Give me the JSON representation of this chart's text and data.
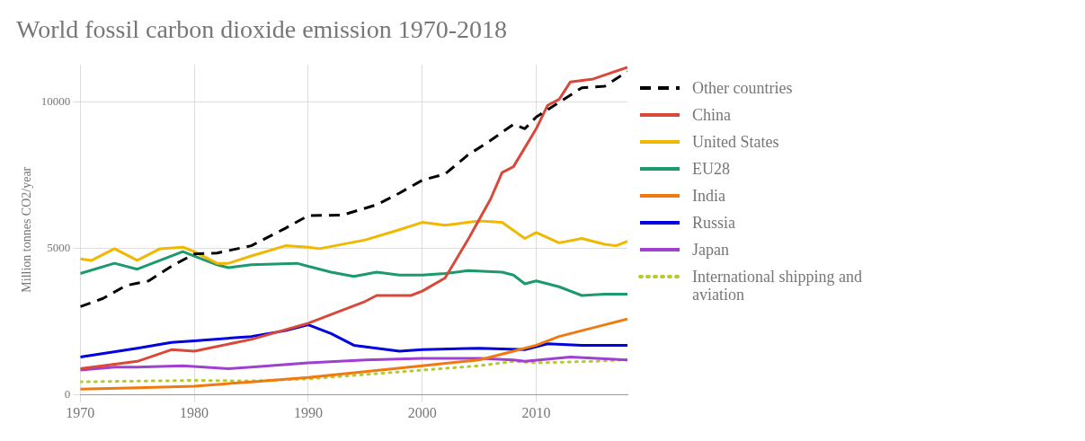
{
  "chart_data": {
    "type": "line",
    "title": "World fossil carbon dioxide emission 1970-2018",
    "ylabel": "Million tonnes CO2/year",
    "xlim": [
      1970,
      2018
    ],
    "xticks": [
      1970,
      1980,
      1990,
      2000,
      2010
    ],
    "ylim": [
      0,
      11300
    ],
    "yticks": [
      0,
      5000,
      10000
    ],
    "grid": true,
    "legend": "right",
    "marker": "none",
    "series": [
      {
        "name": "Other countries",
        "color": "#000000",
        "line_style": "dashed",
        "x": [
          1970,
          1972,
          1974,
          1976,
          1978,
          1980,
          1982,
          1985,
          1988,
          1990,
          1993,
          1996,
          1998,
          2000,
          2002,
          2004,
          2006,
          2008,
          2009,
          2010,
          2012,
          2014,
          2016,
          2018
        ],
        "values": [
          3020,
          3300,
          3740,
          3900,
          4400,
          4820,
          4850,
          5100,
          5700,
          6130,
          6150,
          6500,
          6900,
          7340,
          7550,
          8200,
          8700,
          9250,
          9100,
          9500,
          10000,
          10500,
          10550,
          11050
        ]
      },
      {
        "name": "China",
        "color": "#d9493b",
        "x": [
          1970,
          1975,
          1978,
          1980,
          1985,
          1990,
          1995,
          1996,
          1999,
          2000,
          2002,
          2004,
          2006,
          2007,
          2008,
          2010,
          2011,
          2012,
          2013,
          2015,
          2018
        ],
        "values": [
          900,
          1150,
          1550,
          1500,
          1900,
          2450,
          3200,
          3400,
          3400,
          3550,
          4000,
          5300,
          6700,
          7600,
          7800,
          9100,
          9900,
          10100,
          10700,
          10800,
          11200
        ]
      },
      {
        "name": "United States",
        "color": "#f0b800",
        "x": [
          1970,
          1971,
          1973,
          1975,
          1977,
          1979,
          1980,
          1982,
          1983,
          1985,
          1988,
          1990,
          1991,
          1995,
          1998,
          2000,
          2002,
          2004,
          2005,
          2007,
          2009,
          2010,
          2012,
          2014,
          2016,
          2017,
          2018
        ],
        "values": [
          4650,
          4600,
          5000,
          4600,
          5000,
          5050,
          4900,
          4500,
          4500,
          4750,
          5100,
          5050,
          5000,
          5300,
          5650,
          5900,
          5800,
          5900,
          5950,
          5900,
          5350,
          5550,
          5200,
          5350,
          5150,
          5100,
          5250
        ]
      },
      {
        "name": "EU28",
        "color": "#1d9a6c",
        "x": [
          1970,
          1973,
          1975,
          1977,
          1979,
          1980,
          1982,
          1983,
          1985,
          1989,
          1990,
          1992,
          1994,
          1996,
          1998,
          2000,
          2002,
          2004,
          2007,
          2008,
          2009,
          2010,
          2012,
          2014,
          2016,
          2018
        ],
        "values": [
          4150,
          4500,
          4300,
          4600,
          4900,
          4750,
          4450,
          4350,
          4450,
          4500,
          4400,
          4200,
          4050,
          4200,
          4100,
          4100,
          4150,
          4250,
          4200,
          4100,
          3800,
          3900,
          3700,
          3400,
          3450,
          3450
        ]
      },
      {
        "name": "India",
        "color": "#f07a10",
        "x": [
          1970,
          1975,
          1980,
          1985,
          1990,
          1995,
          2000,
          2005,
          2008,
          2010,
          2012,
          2014,
          2016,
          2018
        ],
        "values": [
          200,
          250,
          300,
          450,
          600,
          800,
          1000,
          1200,
          1500,
          1700,
          2000,
          2200,
          2400,
          2600
        ]
      },
      {
        "name": "Russia",
        "color": "#0000e0",
        "x": [
          1970,
          1975,
          1978,
          1980,
          1985,
          1988,
          1990,
          1992,
          1994,
          1996,
          1998,
          2000,
          2005,
          2009,
          2011,
          2014,
          2018
        ],
        "values": [
          1300,
          1600,
          1800,
          1850,
          2000,
          2200,
          2400,
          2100,
          1700,
          1600,
          1500,
          1550,
          1600,
          1550,
          1750,
          1700,
          1700
        ]
      },
      {
        "name": "Japan",
        "color": "#a040d0",
        "x": [
          1970,
          1973,
          1975,
          1979,
          1983,
          1985,
          1990,
          1995,
          2000,
          2005,
          2008,
          2009,
          2013,
          2018
        ],
        "values": [
          850,
          950,
          950,
          1000,
          900,
          950,
          1100,
          1200,
          1250,
          1250,
          1200,
          1150,
          1300,
          1200
        ]
      },
      {
        "name": "International shipping and aviation",
        "color": "#b8c830",
        "line_style": "dotted",
        "x": [
          1970,
          1980,
          1985,
          1990,
          1995,
          2000,
          2005,
          2008,
          2010,
          2015,
          2018
        ],
        "values": [
          450,
          500,
          480,
          550,
          700,
          850,
          1000,
          1150,
          1100,
          1150,
          1200
        ]
      }
    ]
  }
}
